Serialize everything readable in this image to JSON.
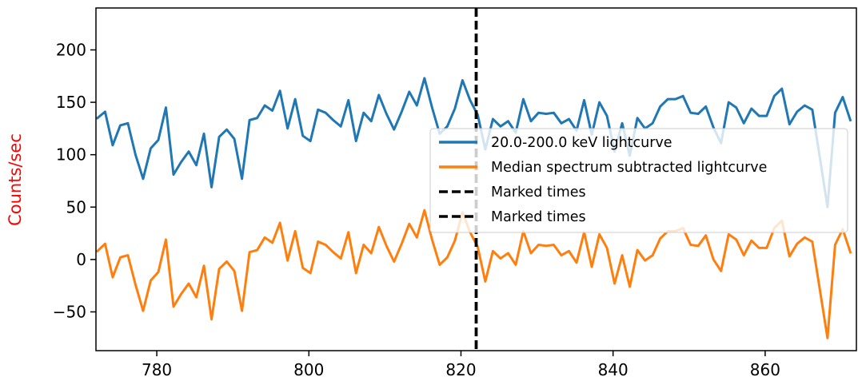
{
  "chart_data": {
    "type": "line",
    "title": "",
    "xlabel": "",
    "ylabel": "Counts/sec",
    "ylabel_color": "#ff0000",
    "xlim": [
      772,
      872
    ],
    "ylim": [
      -87,
      240
    ],
    "x_ticks": [
      780,
      800,
      820,
      840,
      860
    ],
    "y_ticks": [
      -50,
      0,
      50,
      100,
      150,
      200
    ],
    "y_tick_labels": [
      "−50",
      "0",
      "50",
      "100",
      "150",
      "200"
    ],
    "grid": false,
    "legend_position": "center-right",
    "x": [
      772.2,
      773.2,
      774.2,
      775.2,
      776.2,
      777.2,
      778.2,
      779.2,
      780.2,
      781.2,
      782.2,
      783.2,
      784.2,
      785.2,
      786.2,
      787.2,
      788.2,
      789.2,
      790.2,
      791.2,
      792.2,
      793.2,
      794.2,
      795.2,
      796.2,
      797.2,
      798.2,
      799.2,
      800.2,
      801.2,
      802.2,
      803.2,
      804.2,
      805.2,
      806.2,
      807.2,
      808.2,
      809.2,
      810.2,
      811.2,
      812.2,
      813.2,
      814.2,
      815.2,
      816.2,
      817.2,
      818.2,
      819.2,
      820.2,
      821.2,
      822.2,
      823.2,
      824.2,
      825.2,
      826.2,
      827.2,
      828.2,
      829.2,
      830.2,
      831.2,
      832.2,
      833.2,
      834.2,
      835.2,
      836.2,
      837.2,
      838.2,
      839.2,
      840.2,
      841.2,
      842.2,
      843.2,
      844.2,
      845.2,
      846.2,
      847.2,
      848.2,
      849.2,
      850.2,
      851.2,
      852.2,
      853.2,
      854.2,
      855.2,
      856.2,
      857.2,
      858.2,
      859.2,
      860.2,
      861.2,
      862.2,
      863.2,
      864.2,
      865.2,
      866.2,
      867.2,
      868.2,
      869.2,
      870.2,
      871.2
    ],
    "series": [
      {
        "name": "20.0-200.0 keV lightcurve",
        "color": "#1f77b4",
        "style": "solid",
        "values": [
          135,
          141,
          109,
          128,
          130,
          100,
          77,
          106,
          114,
          145,
          81,
          93,
          103,
          90,
          120,
          69,
          117,
          124,
          115,
          77,
          133,
          135,
          147,
          142,
          161,
          125,
          153,
          118,
          113,
          143,
          140,
          133,
          127,
          152,
          113,
          140,
          132,
          157,
          139,
          124,
          141,
          160,
          147,
          173,
          145,
          120,
          127,
          144,
          171,
          152,
          138,
          105,
          134,
          127,
          132,
          121,
          153,
          132,
          140,
          139,
          140,
          130,
          134,
          123,
          152,
          119,
          150,
          137,
          103,
          130,
          99,
          135,
          125,
          130,
          146,
          153,
          153,
          156,
          140,
          139,
          146,
          126,
          111,
          150,
          145,
          130,
          144,
          137,
          137,
          156,
          163,
          129,
          141,
          147,
          143,
          97,
          50,
          140,
          155,
          133
        ]
      },
      {
        "name": "Median spectrum subtracted lightcurve",
        "color": "#ff7f0e",
        "style": "solid",
        "values": [
          8,
          15,
          -17,
          2,
          4,
          -24,
          -49,
          -20,
          -12,
          19,
          -45,
          -33,
          -23,
          -36,
          -6,
          -57,
          -9,
          -2,
          -11,
          -49,
          7,
          9,
          21,
          16,
          35,
          -1,
          27,
          -8,
          -13,
          17,
          14,
          7,
          1,
          26,
          -13,
          14,
          6,
          31,
          13,
          -2,
          15,
          34,
          21,
          47,
          19,
          -5,
          2,
          18,
          45,
          26,
          12,
          -21,
          8,
          1,
          6,
          -5,
          27,
          6,
          14,
          13,
          14,
          4,
          8,
          -3,
          26,
          -7,
          24,
          11,
          -23,
          4,
          -26,
          9,
          -1,
          4,
          20,
          27,
          27,
          30,
          14,
          13,
          23,
          0,
          -11,
          24,
          19,
          4,
          18,
          11,
          11,
          30,
          37,
          3,
          15,
          21,
          17,
          -29,
          -75,
          14,
          29,
          7
        ]
      },
      {
        "name": "Marked times",
        "color": "#000000",
        "style": "dashed",
        "vline_x": 822
      },
      {
        "name": "Marked times",
        "color": "#000000",
        "style": "dashed",
        "vline_x": 822
      }
    ]
  }
}
